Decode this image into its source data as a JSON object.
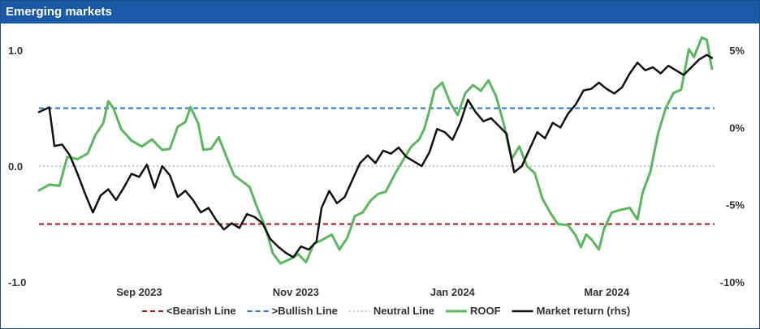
{
  "panel": {
    "title": "Emerging markets"
  },
  "colors": {
    "bearish": "#a0191e",
    "bullish": "#2f77c8",
    "neutral": "#b4b4b4",
    "roof": "#5cb85c",
    "market": "#111111",
    "title_bar": "#1b5aa6"
  },
  "chart_data": {
    "type": "line",
    "title": "Emerging markets",
    "x_range": [
      "2023-07-24",
      "2024-04-12"
    ],
    "x_ticks": [
      {
        "date": "2023-09-01",
        "label": "Sep 2023"
      },
      {
        "date": "2023-11-01",
        "label": "Nov 2023"
      },
      {
        "date": "2024-01-01",
        "label": "Jan 2024"
      },
      {
        "date": "2024-03-01",
        "label": "Mar 2024"
      }
    ],
    "y_left": {
      "range": [
        -1.0,
        1.0
      ],
      "ticks": [
        "1.0",
        "0.0",
        "-1.0"
      ],
      "tick_values": [
        1.0,
        0.0,
        -1.0
      ]
    },
    "y_right": {
      "range": [
        -10,
        5
      ],
      "ticks": [
        "5%",
        "0%",
        "-5%",
        "-10%"
      ],
      "tick_values": [
        5,
        0,
        -5,
        -10
      ],
      "unit": "%"
    },
    "reference_lines": [
      {
        "name": "<Bearish Line",
        "value": -0.5,
        "style": "dashed",
        "color": "#a0191e"
      },
      {
        "name": ">Bullish Line",
        "value": 0.5,
        "style": "dashed",
        "color": "#2f77c8"
      },
      {
        "name": "Neutral Line",
        "value": 0.0,
        "style": "dotted",
        "color": "#b4b4b4"
      }
    ],
    "series": [
      {
        "name": "ROOF",
        "axis": "left",
        "color": "#5cb85c",
        "points": [
          [
            "2023-07-24",
            -0.21
          ],
          [
            "2023-07-28",
            -0.16
          ],
          [
            "2023-08-01",
            -0.17
          ],
          [
            "2023-08-04",
            0.08
          ],
          [
            "2023-08-08",
            0.06
          ],
          [
            "2023-08-12",
            0.11
          ],
          [
            "2023-08-15",
            0.27
          ],
          [
            "2023-08-18",
            0.37
          ],
          [
            "2023-08-20",
            0.56
          ],
          [
            "2023-08-22",
            0.5
          ],
          [
            "2023-08-25",
            0.32
          ],
          [
            "2023-08-29",
            0.22
          ],
          [
            "2023-09-02",
            0.17
          ],
          [
            "2023-09-06",
            0.23
          ],
          [
            "2023-09-10",
            0.14
          ],
          [
            "2023-09-13",
            0.15
          ],
          [
            "2023-09-16",
            0.34
          ],
          [
            "2023-09-19",
            0.38
          ],
          [
            "2023-09-21",
            0.51
          ],
          [
            "2023-09-24",
            0.37
          ],
          [
            "2023-09-26",
            0.14
          ],
          [
            "2023-09-29",
            0.15
          ],
          [
            "2023-10-02",
            0.25
          ],
          [
            "2023-10-05",
            0.08
          ],
          [
            "2023-10-08",
            -0.08
          ],
          [
            "2023-10-11",
            -0.13
          ],
          [
            "2023-10-14",
            -0.18
          ],
          [
            "2023-10-17",
            -0.36
          ],
          [
            "2023-10-20",
            -0.52
          ],
          [
            "2023-10-23",
            -0.75
          ],
          [
            "2023-10-26",
            -0.84
          ],
          [
            "2023-10-30",
            -0.8
          ],
          [
            "2023-11-02",
            -0.76
          ],
          [
            "2023-11-05",
            -0.83
          ],
          [
            "2023-11-08",
            -0.67
          ],
          [
            "2023-11-11",
            -0.64
          ],
          [
            "2023-11-15",
            -0.59
          ],
          [
            "2023-11-18",
            -0.72
          ],
          [
            "2023-11-21",
            -0.62
          ],
          [
            "2023-11-24",
            -0.43
          ],
          [
            "2023-11-27",
            -0.4
          ],
          [
            "2023-11-30",
            -0.3
          ],
          [
            "2023-12-03",
            -0.24
          ],
          [
            "2023-12-06",
            -0.22
          ],
          [
            "2023-12-10",
            -0.05
          ],
          [
            "2023-12-13",
            0.06
          ],
          [
            "2023-12-16",
            0.17
          ],
          [
            "2023-12-19",
            0.23
          ],
          [
            "2023-12-21",
            0.32
          ],
          [
            "2023-12-23",
            0.48
          ],
          [
            "2023-12-25",
            0.66
          ],
          [
            "2023-12-28",
            0.72
          ],
          [
            "2023-12-31",
            0.55
          ],
          [
            "2024-01-03",
            0.44
          ],
          [
            "2024-01-06",
            0.63
          ],
          [
            "2024-01-09",
            0.7
          ],
          [
            "2024-01-12",
            0.65
          ],
          [
            "2024-01-15",
            0.74
          ],
          [
            "2024-01-18",
            0.6
          ],
          [
            "2024-01-21",
            0.36
          ],
          [
            "2024-01-24",
            0.06
          ],
          [
            "2024-01-27",
            0.17
          ],
          [
            "2024-01-30",
            0.0
          ],
          [
            "2024-02-02",
            -0.06
          ],
          [
            "2024-02-05",
            -0.28
          ],
          [
            "2024-02-08",
            -0.4
          ],
          [
            "2024-02-11",
            -0.5
          ],
          [
            "2024-02-15",
            -0.51
          ],
          [
            "2024-02-18",
            -0.6
          ],
          [
            "2024-02-20",
            -0.7
          ],
          [
            "2024-02-22",
            -0.59
          ],
          [
            "2024-02-24",
            -0.63
          ],
          [
            "2024-02-27",
            -0.72
          ],
          [
            "2024-02-29",
            -0.54
          ],
          [
            "2024-03-03",
            -0.4
          ],
          [
            "2024-03-06",
            -0.38
          ],
          [
            "2024-03-10",
            -0.36
          ],
          [
            "2024-03-13",
            -0.46
          ],
          [
            "2024-03-15",
            -0.23
          ],
          [
            "2024-03-18",
            -0.05
          ],
          [
            "2024-03-21",
            0.28
          ],
          [
            "2024-03-24",
            0.5
          ],
          [
            "2024-03-27",
            0.63
          ],
          [
            "2024-03-30",
            0.66
          ],
          [
            "2024-04-02",
            1.01
          ],
          [
            "2024-04-04",
            0.94
          ],
          [
            "2024-04-07",
            1.11
          ],
          [
            "2024-04-09",
            1.09
          ],
          [
            "2024-04-11",
            0.84
          ]
        ]
      },
      {
        "name": "Market return (rhs)",
        "axis": "right",
        "color": "#111111",
        "points": [
          [
            "2023-07-24",
            1.0
          ],
          [
            "2023-07-28",
            1.3
          ],
          [
            "2023-07-30",
            -1.2
          ],
          [
            "2023-08-02",
            -1.1
          ],
          [
            "2023-08-05",
            -1.8
          ],
          [
            "2023-08-08",
            -3.0
          ],
          [
            "2023-08-11",
            -4.3
          ],
          [
            "2023-08-14",
            -5.5
          ],
          [
            "2023-08-17",
            -4.4
          ],
          [
            "2023-08-20",
            -4.0
          ],
          [
            "2023-08-23",
            -4.7
          ],
          [
            "2023-08-26",
            -3.9
          ],
          [
            "2023-08-29",
            -3.0
          ],
          [
            "2023-09-01",
            -3.2
          ],
          [
            "2023-09-04",
            -2.4
          ],
          [
            "2023-09-07",
            -3.9
          ],
          [
            "2023-09-10",
            -2.5
          ],
          [
            "2023-09-13",
            -3.1
          ],
          [
            "2023-09-16",
            -4.5
          ],
          [
            "2023-09-19",
            -4.1
          ],
          [
            "2023-09-22",
            -4.7
          ],
          [
            "2023-09-25",
            -5.5
          ],
          [
            "2023-09-28",
            -5.2
          ],
          [
            "2023-10-01",
            -6.0
          ],
          [
            "2023-10-04",
            -6.6
          ],
          [
            "2023-10-07",
            -6.2
          ],
          [
            "2023-10-10",
            -6.5
          ],
          [
            "2023-10-13",
            -5.6
          ],
          [
            "2023-10-16",
            -5.8
          ],
          [
            "2023-10-19",
            -6.2
          ],
          [
            "2023-10-22",
            -7.2
          ],
          [
            "2023-10-25",
            -7.7
          ],
          [
            "2023-10-28",
            -8.1
          ],
          [
            "2023-10-31",
            -8.4
          ],
          [
            "2023-11-03",
            -7.7
          ],
          [
            "2023-11-06",
            -7.9
          ],
          [
            "2023-11-09",
            -7.4
          ],
          [
            "2023-11-11",
            -5.2
          ],
          [
            "2023-11-14",
            -4.1
          ],
          [
            "2023-11-17",
            -4.9
          ],
          [
            "2023-11-20",
            -4.5
          ],
          [
            "2023-11-23",
            -3.4
          ],
          [
            "2023-11-26",
            -2.3
          ],
          [
            "2023-11-29",
            -1.8
          ],
          [
            "2023-12-02",
            -2.3
          ],
          [
            "2023-12-05",
            -1.5
          ],
          [
            "2023-12-08",
            -1.7
          ],
          [
            "2023-12-11",
            -1.3
          ],
          [
            "2023-12-14",
            -1.9
          ],
          [
            "2023-12-17",
            -2.2
          ],
          [
            "2023-12-20",
            -2.5
          ],
          [
            "2023-12-23",
            -1.6
          ],
          [
            "2023-12-26",
            -0.1
          ],
          [
            "2023-12-29",
            -0.3
          ],
          [
            "2024-01-01",
            -0.8
          ],
          [
            "2024-01-04",
            0.3
          ],
          [
            "2024-01-07",
            1.8
          ],
          [
            "2024-01-10",
            1.0
          ],
          [
            "2024-01-13",
            0.4
          ],
          [
            "2024-01-16",
            0.6
          ],
          [
            "2024-01-19",
            0.1
          ],
          [
            "2024-01-22",
            -0.4
          ],
          [
            "2024-01-25",
            -2.9
          ],
          [
            "2024-01-28",
            -2.5
          ],
          [
            "2024-01-31",
            -1.4
          ],
          [
            "2024-02-03",
            -0.3
          ],
          [
            "2024-02-06",
            -0.7
          ],
          [
            "2024-02-09",
            0.3
          ],
          [
            "2024-02-12",
            0.0
          ],
          [
            "2024-02-15",
            0.9
          ],
          [
            "2024-02-18",
            1.5
          ],
          [
            "2024-02-21",
            2.4
          ],
          [
            "2024-02-24",
            2.5
          ],
          [
            "2024-02-27",
            2.9
          ],
          [
            "2024-03-01",
            2.5
          ],
          [
            "2024-03-04",
            2.2
          ],
          [
            "2024-03-07",
            2.6
          ],
          [
            "2024-03-10",
            3.5
          ],
          [
            "2024-03-13",
            4.2
          ],
          [
            "2024-03-16",
            3.7
          ],
          [
            "2024-03-19",
            3.9
          ],
          [
            "2024-03-22",
            3.5
          ],
          [
            "2024-03-25",
            4.0
          ],
          [
            "2024-03-28",
            3.7
          ],
          [
            "2024-03-31",
            3.4
          ],
          [
            "2024-04-03",
            3.9
          ],
          [
            "2024-04-06",
            4.4
          ],
          [
            "2024-04-09",
            4.7
          ],
          [
            "2024-04-11",
            4.5
          ]
        ]
      }
    ],
    "legend": {
      "placement": "bottom",
      "entries": [
        "<Bearish Line",
        ">Bullish Line",
        "Neutral Line",
        "ROOF",
        "Market return (rhs)"
      ]
    }
  }
}
